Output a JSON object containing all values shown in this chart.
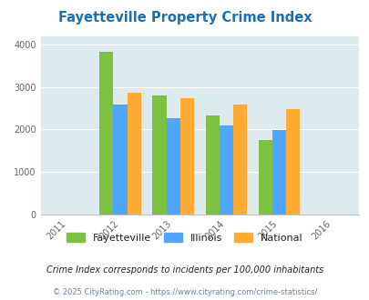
{
  "title": "Fayetteville Property Crime Index",
  "categories": [
    "Fayetteville",
    "Illinois",
    "National"
  ],
  "values": {
    "Fayetteville": [
      3820,
      2810,
      2320,
      1760
    ],
    "Illinois": [
      2580,
      2260,
      2090,
      1990
    ],
    "National": [
      2870,
      2730,
      2590,
      2490
    ]
  },
  "data_years": [
    2012,
    2013,
    2014,
    2015
  ],
  "bar_colors": {
    "Fayetteville": "#7dc142",
    "Illinois": "#4da6ff",
    "National": "#ffaa33"
  },
  "plot_bg": "#ddeaee",
  "title_color": "#1a6fbb",
  "ylabel_ticks": [
    0,
    1000,
    2000,
    3000,
    4000
  ],
  "xlim": [
    2010.5,
    2016.5
  ],
  "ylim": [
    0,
    4200
  ],
  "footnote1": "Crime Index corresponds to incidents per 100,000 inhabitants",
  "footnote2": "© 2025 CityRating.com - https://www.cityrating.com/crime-statistics/",
  "bar_width": 0.26
}
